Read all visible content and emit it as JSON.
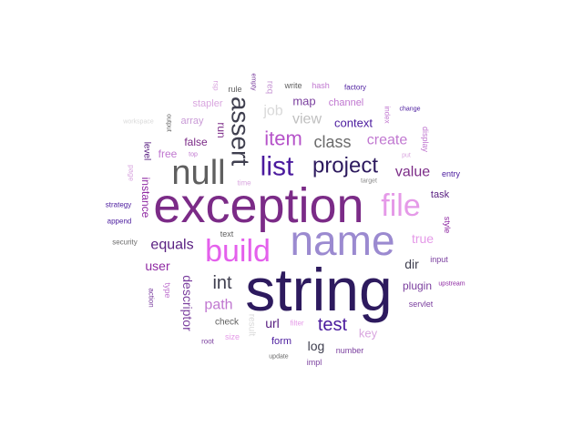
{
  "words": [
    {
      "text": "string",
      "color": "#2d1a5e"
    },
    {
      "text": "exception",
      "color": "#7b2b87"
    },
    {
      "text": "name",
      "color": "#9b8ad0"
    },
    {
      "text": "null",
      "color": "#5f5f5f"
    },
    {
      "text": "build",
      "color": "#e460ec"
    },
    {
      "text": "file",
      "color": "#e59ae8"
    },
    {
      "text": "list",
      "color": "#4b1b9e"
    },
    {
      "text": "project",
      "color": "#2d1a5e"
    },
    {
      "text": "assert",
      "color": "#3f3f4f"
    },
    {
      "text": "item",
      "color": "#b552c9"
    },
    {
      "text": "class",
      "color": "#6b6b6b"
    },
    {
      "text": "create",
      "color": "#c077d0"
    },
    {
      "text": "view",
      "color": "#bfbfbf"
    },
    {
      "text": "job",
      "color": "#d9d9d9"
    },
    {
      "text": "value",
      "color": "#7b2b87"
    },
    {
      "text": "test",
      "color": "#4b1b9e"
    },
    {
      "text": "equals",
      "color": "#5a2182"
    },
    {
      "text": "int",
      "color": "#3f3f4f"
    },
    {
      "text": "path",
      "color": "#c077d0"
    },
    {
      "text": "descriptor",
      "color": "#7a3e9e"
    },
    {
      "text": "user",
      "color": "#8f2aa3"
    },
    {
      "text": "context",
      "color": "#4b1b9e"
    },
    {
      "text": "map",
      "color": "#7a3e9e"
    },
    {
      "text": "true",
      "color": "#e59ae8"
    },
    {
      "text": "dir",
      "color": "#3f3f4f"
    },
    {
      "text": "plugin",
      "color": "#7a3e9e"
    },
    {
      "text": "url",
      "color": "#5a2182"
    },
    {
      "text": "log",
      "color": "#3f3f4f"
    },
    {
      "text": "key",
      "color": "#d9a6df"
    },
    {
      "text": "form",
      "color": "#4b1b9e"
    },
    {
      "text": "run",
      "color": "#7b2b87"
    },
    {
      "text": "false",
      "color": "#7b2b87"
    },
    {
      "text": "free",
      "color": "#c077d0"
    },
    {
      "text": "instance",
      "color": "#8f2aa3"
    },
    {
      "text": "level",
      "color": "#5a2182"
    },
    {
      "text": "array",
      "color": "#c99ad6"
    },
    {
      "text": "stapler",
      "color": "#d9a6df"
    },
    {
      "text": "channel",
      "color": "#c077d0"
    },
    {
      "text": "write",
      "color": "#5f5f5f"
    },
    {
      "text": "hash",
      "color": "#c077d0"
    },
    {
      "text": "factory",
      "color": "#4b1b9e"
    },
    {
      "text": "rule",
      "color": "#5f5f5f"
    },
    {
      "text": "req",
      "color": "#c99ad6"
    },
    {
      "text": "empty",
      "color": "#7a3e9e"
    },
    {
      "text": "rsp",
      "color": "#d9a6df"
    },
    {
      "text": "index",
      "color": "#c077d0"
    },
    {
      "text": "change",
      "color": "#4b1b9e"
    },
    {
      "text": "put",
      "color": "#d9a6df"
    },
    {
      "text": "display",
      "color": "#c077d0"
    },
    {
      "text": "workspace",
      "color": "#d9d9d9"
    },
    {
      "text": "output",
      "color": "#5f5f5f"
    },
    {
      "text": "top",
      "color": "#c077d0"
    },
    {
      "text": "page",
      "color": "#d9a6df"
    },
    {
      "text": "time",
      "color": "#d9a6df"
    },
    {
      "text": "target",
      "color": "#8a8a8a"
    },
    {
      "text": "entry",
      "color": "#4b1b9e"
    },
    {
      "text": "task",
      "color": "#5a2182"
    },
    {
      "text": "strategy",
      "color": "#4b1b9e"
    },
    {
      "text": "append",
      "color": "#4b1b9e"
    },
    {
      "text": "style",
      "color": "#8f2aa3"
    },
    {
      "text": "security",
      "color": "#6b6b6b"
    },
    {
      "text": "text",
      "color": "#5f5f5f"
    },
    {
      "text": "input",
      "color": "#7a3e9e"
    },
    {
      "text": "upstream",
      "color": "#8f2aa3"
    },
    {
      "text": "servlet",
      "color": "#7a3e9e"
    },
    {
      "text": "action",
      "color": "#7a3e9e"
    },
    {
      "text": "type",
      "color": "#c077d0"
    },
    {
      "text": "check",
      "color": "#5f5f5f"
    },
    {
      "text": "result",
      "color": "#d9d9d9"
    },
    {
      "text": "filter",
      "color": "#e59ae8"
    },
    {
      "text": "number",
      "color": "#7a3e9e"
    },
    {
      "text": "root",
      "color": "#7a3e9e"
    },
    {
      "text": "size",
      "color": "#e59ae8"
    },
    {
      "text": "update",
      "color": "#6b6b6b"
    },
    {
      "text": "impl",
      "color": "#7a3e9e"
    }
  ]
}
